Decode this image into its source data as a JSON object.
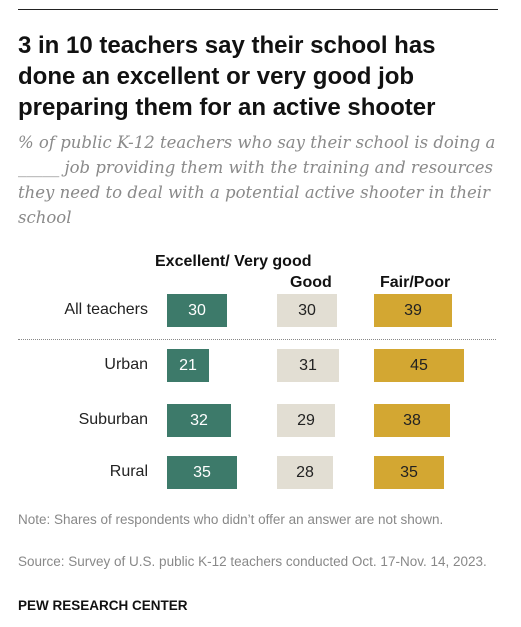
{
  "title": "3 in 10 teachers say their school has done an excellent or very good job preparing them for an active shooter",
  "subtitle": "% of public K-12 teachers who say their school is doing a _____ job providing them with the training and resources they need to deal with a potential active shooter in their school",
  "colors": {
    "excellent": "#3d7a6a",
    "good": "#e2ded3",
    "fair": "#d3a732"
  },
  "chart_data": {
    "type": "bar",
    "categories": [
      "All teachers",
      "Urban",
      "Suburban",
      "Rural"
    ],
    "series": [
      {
        "name": "Excellent/ Very good",
        "values": [
          30,
          21,
          32,
          35
        ]
      },
      {
        "name": "Good",
        "values": [
          30,
          31,
          29,
          28
        ]
      },
      {
        "name": "Fair/Poor",
        "values": [
          39,
          45,
          38,
          35
        ]
      }
    ]
  },
  "note": "Note: Shares of respondents who didn’t offer an answer are not shown.",
  "source": "Source: Survey of U.S. public K-12 teachers conducted Oct. 17-Nov. 14, 2023.",
  "brand": "PEW RESEARCH CENTER"
}
